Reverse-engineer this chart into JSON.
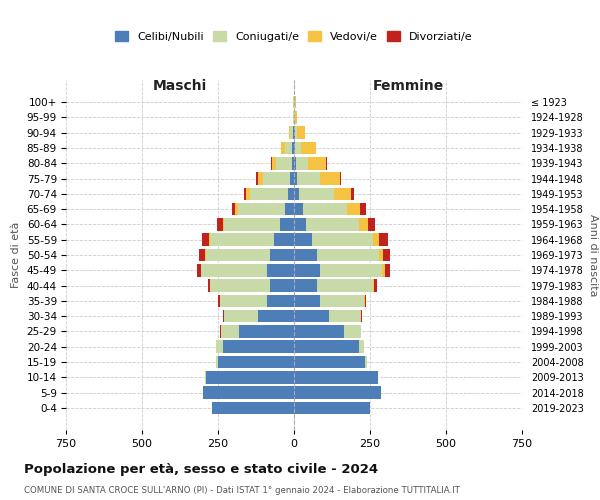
{
  "age_groups": [
    "0-4",
    "5-9",
    "10-14",
    "15-19",
    "20-24",
    "25-29",
    "30-34",
    "35-39",
    "40-44",
    "45-49",
    "50-54",
    "55-59",
    "60-64",
    "65-69",
    "70-74",
    "75-79",
    "80-84",
    "85-89",
    "90-94",
    "95-99",
    "100+"
  ],
  "birth_years": [
    "2019-2023",
    "2014-2018",
    "2009-2013",
    "2004-2008",
    "1999-2003",
    "1994-1998",
    "1989-1993",
    "1984-1988",
    "1979-1983",
    "1974-1978",
    "1969-1973",
    "1964-1968",
    "1959-1963",
    "1954-1958",
    "1949-1953",
    "1944-1948",
    "1939-1943",
    "1934-1938",
    "1929-1933",
    "1924-1928",
    "≤ 1923"
  ],
  "males": {
    "celibi": [
      270,
      300,
      290,
      250,
      235,
      180,
      120,
      90,
      80,
      90,
      80,
      65,
      45,
      30,
      20,
      12,
      8,
      5,
      2,
      1,
      1
    ],
    "coniugati": [
      0,
      0,
      2,
      5,
      20,
      60,
      110,
      155,
      195,
      215,
      210,
      210,
      185,
      155,
      125,
      90,
      50,
      25,
      10,
      2,
      1
    ],
    "vedovi": [
      0,
      0,
      0,
      0,
      0,
      0,
      0,
      0,
      1,
      2,
      3,
      4,
      5,
      8,
      12,
      18,
      15,
      12,
      5,
      1,
      1
    ],
    "divorziati": [
      0,
      0,
      0,
      0,
      1,
      2,
      4,
      5,
      8,
      12,
      18,
      22,
      18,
      12,
      8,
      4,
      2,
      1,
      0,
      0,
      0
    ]
  },
  "females": {
    "nubili": [
      250,
      285,
      275,
      235,
      215,
      165,
      115,
      85,
      75,
      85,
      75,
      60,
      40,
      28,
      18,
      10,
      6,
      4,
      2,
      1,
      1
    ],
    "coniugate": [
      0,
      0,
      2,
      4,
      15,
      55,
      105,
      145,
      185,
      205,
      205,
      200,
      175,
      145,
      115,
      75,
      40,
      18,
      8,
      2,
      1
    ],
    "vedove": [
      0,
      0,
      0,
      0,
      0,
      0,
      1,
      2,
      4,
      8,
      12,
      18,
      28,
      45,
      55,
      65,
      60,
      50,
      25,
      8,
      3
    ],
    "divorziate": [
      0,
      0,
      0,
      0,
      1,
      2,
      4,
      6,
      10,
      18,
      25,
      30,
      25,
      18,
      8,
      5,
      3,
      1,
      0,
      0,
      0
    ]
  },
  "colors": {
    "celibi": "#4e7eb8",
    "coniugati": "#c8daa8",
    "vedovi": "#f5c242",
    "divorziati": "#c0231e"
  },
  "title": "Popolazione per età, sesso e stato civile - 2024",
  "subtitle": "COMUNE DI SANTA CROCE SULL'ARNO (PI) - Dati ISTAT 1° gennaio 2024 - Elaborazione TUTTITALIA.IT",
  "xlabel_left": "Maschi",
  "xlabel_right": "Femmine",
  "ylabel_left": "Fasce di età",
  "ylabel_right": "Anni di nascita",
  "xlim": 750,
  "legend_labels": [
    "Celibi/Nubili",
    "Coniugati/e",
    "Vedovi/e",
    "Divorziati/e"
  ],
  "background_color": "#ffffff",
  "grid_color": "#cccccc"
}
